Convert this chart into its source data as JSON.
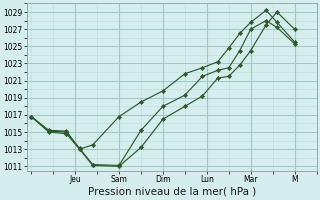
{
  "background_color": "#d5eeed",
  "grid_color_minor": "#c2e0e0",
  "grid_color_major": "#9ec8c8",
  "line_color": "#2d5a2d",
  "marker_color": "#2d5a2d",
  "xlabel": "Pression niveau de la mer( hPa )",
  "ylim": [
    1010.5,
    1030.0
  ],
  "yticks": [
    1011,
    1013,
    1015,
    1017,
    1019,
    1021,
    1023,
    1025,
    1027,
    1029
  ],
  "xlabel_fontsize": 7.5,
  "tick_fontsize": 5.5,
  "day_labels": [
    "Jeu",
    "Sam",
    "Dim",
    "Lun",
    "Mar",
    "M"
  ],
  "day_tick_positions": [
    2.0,
    4.0,
    6.0,
    8.0,
    10.0,
    12.0
  ],
  "xlim": [
    -0.2,
    13.0
  ],
  "series1_x": [
    0.0,
    0.8,
    1.6,
    2.2,
    2.8,
    4.0,
    5.0,
    6.0,
    7.0,
    7.8,
    8.5,
    9.0,
    9.5,
    10.0,
    10.7,
    11.2,
    12.0
  ],
  "series1_y": [
    1016.8,
    1015.1,
    1015.0,
    1013.1,
    1011.2,
    1011.1,
    1015.2,
    1018.0,
    1019.3,
    1021.5,
    1022.2,
    1022.5,
    1024.5,
    1027.0,
    1028.0,
    1027.2,
    1025.3
  ],
  "series2_x": [
    0.0,
    0.8,
    1.6,
    2.2,
    2.8,
    4.0,
    5.0,
    6.0,
    7.0,
    7.8,
    8.5,
    9.0,
    9.5,
    10.0,
    10.7,
    11.2,
    12.0
  ],
  "series2_y": [
    1016.8,
    1015.0,
    1014.8,
    1013.0,
    1011.1,
    1011.0,
    1013.2,
    1016.5,
    1018.0,
    1019.2,
    1021.3,
    1021.5,
    1022.8,
    1024.5,
    1027.5,
    1029.0,
    1027.0
  ],
  "series3_x": [
    0.0,
    0.8,
    1.6,
    2.2,
    2.8,
    4.0,
    5.0,
    6.0,
    7.0,
    7.8,
    8.5,
    9.0,
    9.5,
    10.0,
    10.7,
    11.2,
    12.0
  ],
  "series3_y": [
    1016.8,
    1015.2,
    1015.1,
    1013.0,
    1013.5,
    1016.8,
    1018.5,
    1019.8,
    1021.8,
    1022.5,
    1023.2,
    1024.8,
    1026.5,
    1027.8,
    1029.2,
    1027.8,
    1025.5
  ]
}
